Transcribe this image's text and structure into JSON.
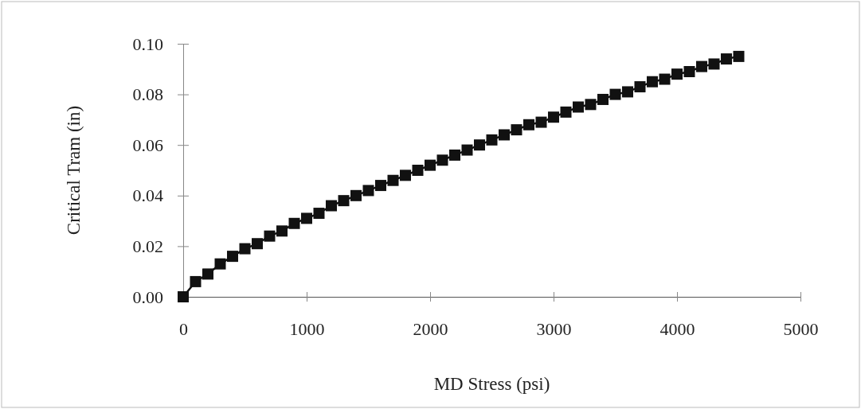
{
  "chart_data": {
    "type": "line",
    "xlabel": "MD Stress (psi)",
    "ylabel": "Critical Tram (in)",
    "x": [
      0,
      100,
      200,
      300,
      400,
      500,
      600,
      700,
      800,
      900,
      1000,
      1100,
      1200,
      1300,
      1400,
      1500,
      1600,
      1700,
      1800,
      1900,
      2000,
      2100,
      2200,
      2300,
      2400,
      2500,
      2600,
      2700,
      2800,
      2900,
      3000,
      3100,
      3200,
      3300,
      3400,
      3500,
      3600,
      3700,
      3800,
      3900,
      4000,
      4100,
      4200,
      4300,
      4400,
      4500
    ],
    "series": [
      {
        "color": "#111111",
        "values": [
          0,
          0.006,
          0.009,
          0.013,
          0.016,
          0.019,
          0.021,
          0.024,
          0.026,
          0.029,
          0.031,
          0.033,
          0.036,
          0.038,
          0.04,
          0.042,
          0.044,
          0.046,
          0.048,
          0.05,
          0.052,
          0.054,
          0.056,
          0.058,
          0.06,
          0.062,
          0.064,
          0.066,
          0.068,
          0.069,
          0.071,
          0.073,
          0.075,
          0.076,
          0.078,
          0.08,
          0.081,
          0.083,
          0.085,
          0.086,
          0.088,
          0.089,
          0.091,
          0.092,
          0.094,
          0.095
        ]
      }
    ],
    "xlim": [
      0,
      5000
    ],
    "xticks": [
      0,
      1000,
      2000,
      3000,
      4000,
      5000
    ],
    "ylim": [
      0,
      0.1
    ],
    "yticks": [
      {
        "value": 0,
        "label": "0.00"
      },
      {
        "value": 0.02,
        "label": "0.02"
      },
      {
        "value": 0.04,
        "label": "0.04"
      },
      {
        "value": 0.06,
        "label": "0.06"
      },
      {
        "value": 0.08,
        "label": "0.08"
      },
      {
        "value": 0.1,
        "label": "0.10"
      }
    ],
    "marker": "square",
    "line_style": "solid",
    "grid": false
  }
}
